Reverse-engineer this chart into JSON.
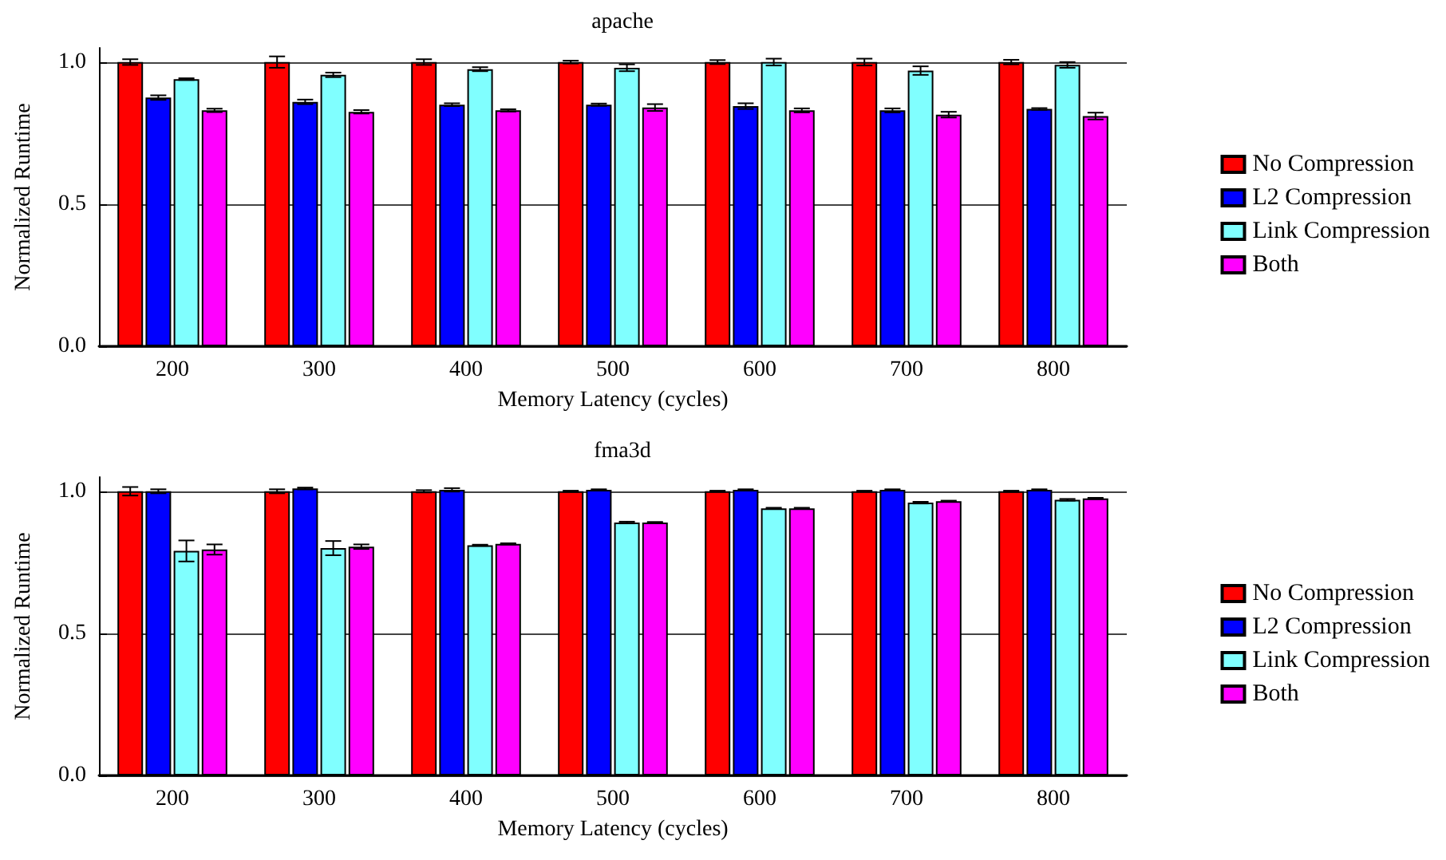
{
  "chart_data": [
    {
      "type": "bar",
      "title": "apache",
      "xlabel": "Memory Latency (cycles)",
      "ylabel": "Normalized Runtime",
      "categories": [
        "200",
        "300",
        "400",
        "500",
        "600",
        "700",
        "800"
      ],
      "ylim": [
        0,
        1.05
      ],
      "yticks": [
        {
          "value": 0,
          "label": "0.0"
        },
        {
          "value": 0.5,
          "label": "0.5"
        },
        {
          "value": 1,
          "label": "1.0"
        }
      ],
      "grid": "y",
      "legend": "right",
      "series": [
        {
          "name": "No Compression",
          "color": "#ff0000",
          "values": [
            1.0,
            1.0,
            1.0,
            1.0,
            1.0,
            1.0,
            1.0
          ],
          "errors": [
            0.01,
            0.02,
            0.01,
            0.005,
            0.007,
            0.012,
            0.008
          ]
        },
        {
          "name": "L2 Compression",
          "color": "#0000ff",
          "values": [
            0.875,
            0.86,
            0.85,
            0.85,
            0.845,
            0.83,
            0.835
          ],
          "errors": [
            0.008,
            0.008,
            0.005,
            0.004,
            0.01,
            0.007,
            0.003
          ]
        },
        {
          "name": "Link Compression",
          "color": "#80ffff",
          "values": [
            0.94,
            0.955,
            0.975,
            0.98,
            1.0,
            0.97,
            0.99
          ],
          "errors": [
            0.003,
            0.008,
            0.007,
            0.012,
            0.012,
            0.015,
            0.01
          ]
        },
        {
          "name": "Both",
          "color": "#ff00ff",
          "values": [
            0.83,
            0.825,
            0.83,
            0.84,
            0.83,
            0.815,
            0.81
          ],
          "errors": [
            0.006,
            0.006,
            0.004,
            0.012,
            0.007,
            0.01,
            0.012
          ]
        }
      ]
    },
    {
      "type": "bar",
      "title": "fma3d",
      "xlabel": "Memory Latency (cycles)",
      "ylabel": "Normalized Runtime",
      "categories": [
        "200",
        "300",
        "400",
        "500",
        "600",
        "700",
        "800"
      ],
      "ylim": [
        0,
        1.05
      ],
      "yticks": [
        {
          "value": 0,
          "label": "0.0"
        },
        {
          "value": 0.5,
          "label": "0.5"
        },
        {
          "value": 1,
          "label": "1.0"
        }
      ],
      "grid": "y",
      "legend": "right",
      "series": [
        {
          "name": "No Compression",
          "color": "#ff0000",
          "values": [
            1.0,
            1.0,
            1.0,
            1.0,
            1.0,
            1.0,
            1.0
          ],
          "errors": [
            0.015,
            0.007,
            0.004,
            0.002,
            0.002,
            0.002,
            0.002
          ]
        },
        {
          "name": "L2 Compression",
          "color": "#0000ff",
          "values": [
            1.0,
            1.01,
            1.005,
            1.005,
            1.005,
            1.005,
            1.005
          ],
          "errors": [
            0.007,
            0.003,
            0.006,
            0.002,
            0.002,
            0.002,
            0.002
          ]
        },
        {
          "name": "Link Compression",
          "color": "#80ffff",
          "values": [
            0.79,
            0.8,
            0.81,
            0.89,
            0.94,
            0.96,
            0.97
          ],
          "errors": [
            0.037,
            0.025,
            0.002,
            0.003,
            0.002,
            0.003,
            0.003
          ]
        },
        {
          "name": "Both",
          "color": "#ff00ff",
          "values": [
            0.795,
            0.805,
            0.815,
            0.89,
            0.94,
            0.965,
            0.975
          ],
          "errors": [
            0.018,
            0.008,
            0.002,
            0.002,
            0.002,
            0.002,
            0.002
          ]
        }
      ]
    }
  ]
}
